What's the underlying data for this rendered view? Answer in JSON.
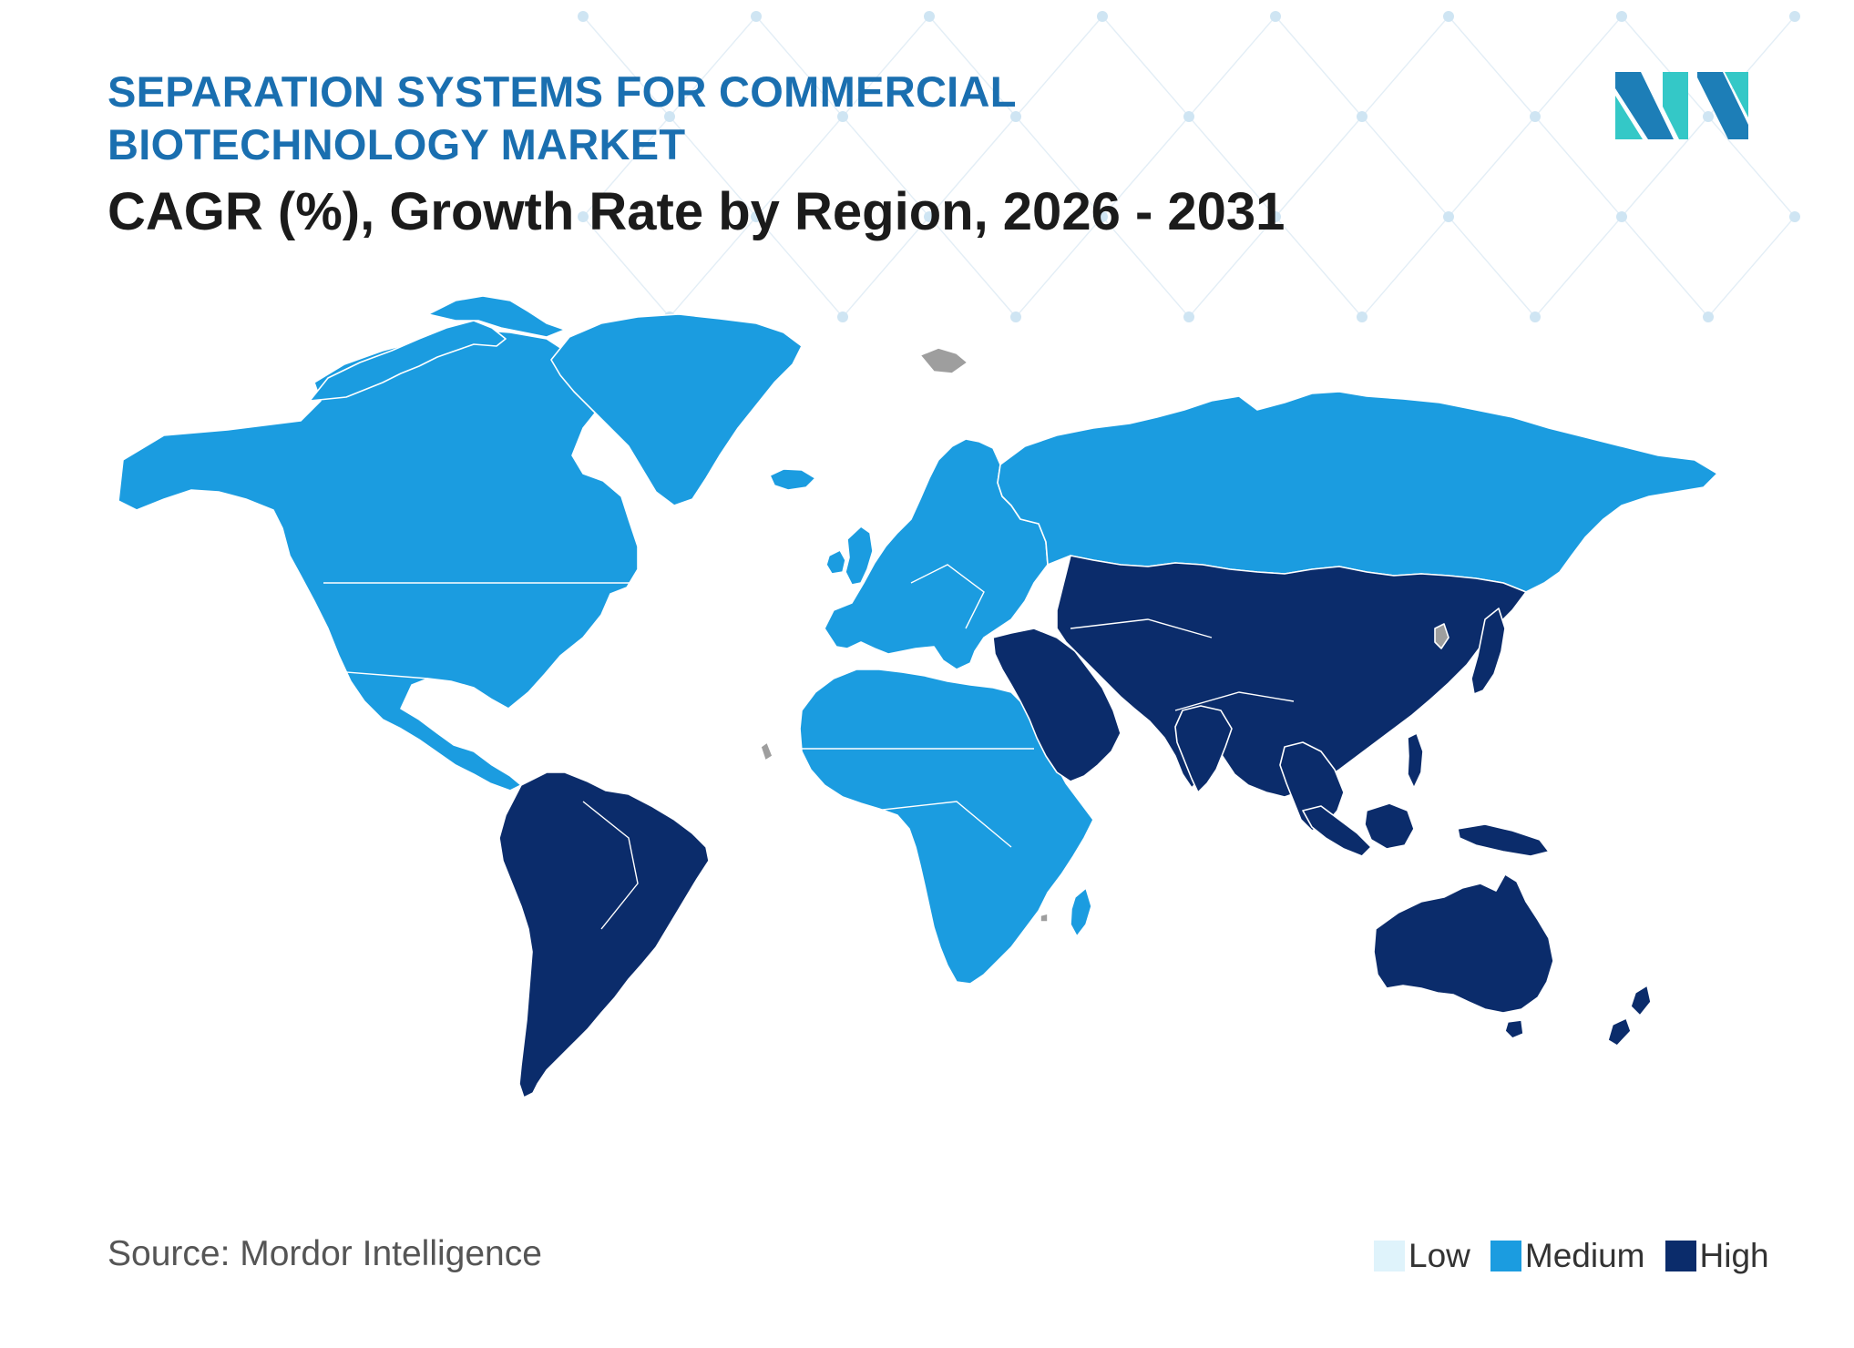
{
  "title": {
    "line1": "SEPARATION SYSTEMS FOR COMMERCIAL",
    "line2": "BIOTECHNOLOGY MARKET"
  },
  "subtitle": "CAGR (%), Growth Rate by Region, 2026 - 2031",
  "source": "Source: Mordor Intelligence",
  "colors": {
    "low": "#dff3fb",
    "medium": "#1b9ce0",
    "high": "#0b2c6b",
    "no_data": "#9e9e9e",
    "title": "#1a6fb0",
    "logo_dark": "#1d7eb7",
    "logo_light": "#34c8c7"
  },
  "legend": [
    {
      "label": "Low",
      "level": "low"
    },
    {
      "label": "Medium",
      "level": "medium"
    },
    {
      "label": "High",
      "level": "high"
    }
  ],
  "regions": [
    {
      "name": "North America",
      "level": "medium"
    },
    {
      "name": "Europe",
      "level": "medium"
    },
    {
      "name": "Middle East and Africa",
      "level": "medium"
    },
    {
      "name": "South America",
      "level": "high"
    },
    {
      "name": "Asia Pacific",
      "level": "high"
    },
    {
      "name": "Russia",
      "level": "medium"
    }
  ],
  "logo_icon": "mordor-intelligence-logo"
}
